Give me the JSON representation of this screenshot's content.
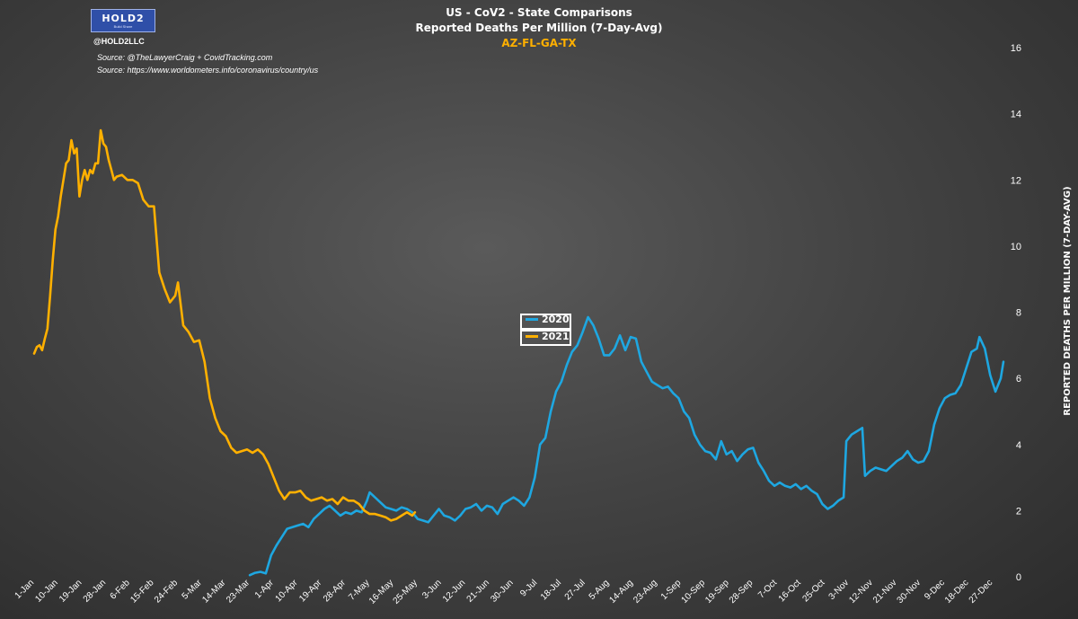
{
  "header": {
    "logo_text": "HOLD2",
    "logo_tagline": "Build Share",
    "handle": "@HOLD2LLC",
    "sources": [
      "Source: @TheLawyerCraig + CovidTracking.com",
      "Source: https://www.worldometers.info/coronavirus/country/us"
    ]
  },
  "chart_data": {
    "type": "line",
    "title": "US - CoV2 - State Comparisons",
    "title_line2": "Reported Deaths Per Million (7-Day-Avg)",
    "subtitle": "AZ-FL-GA-TX",
    "xlabel": "",
    "ylabel": "REPORTED DEATHS PER MILLION (7-DAY-AVG)",
    "ylim": [
      0,
      16
    ],
    "y_ticks": [
      0,
      2,
      4,
      6,
      8,
      10,
      12,
      14,
      16
    ],
    "y_axis_side": "right",
    "grid": false,
    "legend_position": "center",
    "x_domain_days": [
      1,
      365
    ],
    "x_ticks": [
      {
        "day": 1,
        "label": "1-Jan"
      },
      {
        "day": 10,
        "label": "10-Jan"
      },
      {
        "day": 19,
        "label": "19-Jan"
      },
      {
        "day": 28,
        "label": "28-Jan"
      },
      {
        "day": 37,
        "label": "6-Feb"
      },
      {
        "day": 46,
        "label": "15-Feb"
      },
      {
        "day": 55,
        "label": "24-Feb"
      },
      {
        "day": 64,
        "label": "5-Mar"
      },
      {
        "day": 73,
        "label": "14-Mar"
      },
      {
        "day": 82,
        "label": "23-Mar"
      },
      {
        "day": 91,
        "label": "1-Apr"
      },
      {
        "day": 100,
        "label": "10-Apr"
      },
      {
        "day": 109,
        "label": "19-Apr"
      },
      {
        "day": 118,
        "label": "28-Apr"
      },
      {
        "day": 127,
        "label": "7-May"
      },
      {
        "day": 136,
        "label": "16-May"
      },
      {
        "day": 145,
        "label": "25-May"
      },
      {
        "day": 154,
        "label": "3-Jun"
      },
      {
        "day": 163,
        "label": "12-Jun"
      },
      {
        "day": 172,
        "label": "21-Jun"
      },
      {
        "day": 181,
        "label": "30-Jun"
      },
      {
        "day": 190,
        "label": "9-Jul"
      },
      {
        "day": 199,
        "label": "18-Jul"
      },
      {
        "day": 208,
        "label": "27-Jul"
      },
      {
        "day": 217,
        "label": "5-Aug"
      },
      {
        "day": 226,
        "label": "14-Aug"
      },
      {
        "day": 235,
        "label": "23-Aug"
      },
      {
        "day": 244,
        "label": "1-Sep"
      },
      {
        "day": 253,
        "label": "10-Sep"
      },
      {
        "day": 262,
        "label": "19-Sep"
      },
      {
        "day": 271,
        "label": "28-Sep"
      },
      {
        "day": 280,
        "label": "7-Oct"
      },
      {
        "day": 289,
        "label": "16-Oct"
      },
      {
        "day": 298,
        "label": "25-Oct"
      },
      {
        "day": 307,
        "label": "3-Nov"
      },
      {
        "day": 316,
        "label": "12-Nov"
      },
      {
        "day": 325,
        "label": "21-Nov"
      },
      {
        "day": 334,
        "label": "30-Nov"
      },
      {
        "day": 343,
        "label": "9-Dec"
      },
      {
        "day": 352,
        "label": "18-Dec"
      },
      {
        "day": 361,
        "label": "27-Dec"
      }
    ],
    "series": [
      {
        "name": "2020",
        "color": "#1ea7e1",
        "points": [
          [
            82,
            0.05
          ],
          [
            84,
            0.12
          ],
          [
            86,
            0.15
          ],
          [
            88,
            0.1
          ],
          [
            90,
            0.65
          ],
          [
            92,
            0.95
          ],
          [
            94,
            1.2
          ],
          [
            96,
            1.45
          ],
          [
            98,
            1.5
          ],
          [
            100,
            1.55
          ],
          [
            102,
            1.6
          ],
          [
            104,
            1.5
          ],
          [
            106,
            1.75
          ],
          [
            108,
            1.9
          ],
          [
            110,
            2.05
          ],
          [
            112,
            2.15
          ],
          [
            114,
            2.0
          ],
          [
            116,
            1.85
          ],
          [
            118,
            1.95
          ],
          [
            120,
            1.9
          ],
          [
            122,
            2.0
          ],
          [
            124,
            1.95
          ],
          [
            126,
            2.3
          ],
          [
            127,
            2.55
          ],
          [
            129,
            2.4
          ],
          [
            131,
            2.25
          ],
          [
            133,
            2.1
          ],
          [
            135,
            2.05
          ],
          [
            137,
            2.0
          ],
          [
            139,
            2.1
          ],
          [
            141,
            2.05
          ],
          [
            143,
            1.95
          ],
          [
            145,
            1.75
          ],
          [
            147,
            1.7
          ],
          [
            149,
            1.65
          ],
          [
            151,
            1.85
          ],
          [
            153,
            2.05
          ],
          [
            155,
            1.85
          ],
          [
            157,
            1.8
          ],
          [
            159,
            1.7
          ],
          [
            161,
            1.85
          ],
          [
            163,
            2.05
          ],
          [
            165,
            2.1
          ],
          [
            167,
            2.2
          ],
          [
            169,
            2.0
          ],
          [
            171,
            2.15
          ],
          [
            173,
            2.1
          ],
          [
            175,
            1.9
          ],
          [
            177,
            2.2
          ],
          [
            179,
            2.3
          ],
          [
            181,
            2.4
          ],
          [
            183,
            2.3
          ],
          [
            185,
            2.15
          ],
          [
            187,
            2.4
          ],
          [
            189,
            3.0
          ],
          [
            191,
            4.0
          ],
          [
            193,
            4.2
          ],
          [
            195,
            5.0
          ],
          [
            197,
            5.6
          ],
          [
            199,
            5.9
          ],
          [
            201,
            6.4
          ],
          [
            203,
            6.8
          ],
          [
            205,
            7.0
          ],
          [
            207,
            7.4
          ],
          [
            209,
            7.85
          ],
          [
            211,
            7.6
          ],
          [
            213,
            7.2
          ],
          [
            215,
            6.7
          ],
          [
            217,
            6.7
          ],
          [
            219,
            6.9
          ],
          [
            221,
            7.3
          ],
          [
            223,
            6.85
          ],
          [
            225,
            7.25
          ],
          [
            227,
            7.2
          ],
          [
            229,
            6.5
          ],
          [
            231,
            6.2
          ],
          [
            233,
            5.9
          ],
          [
            235,
            5.8
          ],
          [
            237,
            5.7
          ],
          [
            239,
            5.75
          ],
          [
            241,
            5.55
          ],
          [
            243,
            5.4
          ],
          [
            245,
            5.0
          ],
          [
            247,
            4.8
          ],
          [
            249,
            4.3
          ],
          [
            251,
            4.0
          ],
          [
            253,
            3.8
          ],
          [
            255,
            3.75
          ],
          [
            257,
            3.55
          ],
          [
            259,
            4.1
          ],
          [
            261,
            3.7
          ],
          [
            263,
            3.8
          ],
          [
            265,
            3.5
          ],
          [
            267,
            3.7
          ],
          [
            269,
            3.85
          ],
          [
            271,
            3.9
          ],
          [
            273,
            3.45
          ],
          [
            275,
            3.2
          ],
          [
            277,
            2.9
          ],
          [
            279,
            2.75
          ],
          [
            281,
            2.85
          ],
          [
            283,
            2.75
          ],
          [
            285,
            2.7
          ],
          [
            287,
            2.8
          ],
          [
            289,
            2.65
          ],
          [
            291,
            2.75
          ],
          [
            293,
            2.6
          ],
          [
            295,
            2.5
          ],
          [
            297,
            2.2
          ],
          [
            299,
            2.05
          ],
          [
            301,
            2.15
          ],
          [
            303,
            2.3
          ],
          [
            305,
            2.4
          ],
          [
            306,
            4.1
          ],
          [
            308,
            4.3
          ],
          [
            310,
            4.4
          ],
          [
            312,
            4.5
          ],
          [
            313,
            3.05
          ],
          [
            315,
            3.2
          ],
          [
            317,
            3.3
          ],
          [
            319,
            3.25
          ],
          [
            321,
            3.2
          ],
          [
            323,
            3.35
          ],
          [
            325,
            3.5
          ],
          [
            327,
            3.6
          ],
          [
            329,
            3.8
          ],
          [
            331,
            3.55
          ],
          [
            333,
            3.45
          ],
          [
            335,
            3.5
          ],
          [
            337,
            3.8
          ],
          [
            339,
            4.6
          ],
          [
            341,
            5.1
          ],
          [
            343,
            5.4
          ],
          [
            345,
            5.5
          ],
          [
            347,
            5.55
          ],
          [
            349,
            5.8
          ],
          [
            351,
            6.3
          ],
          [
            353,
            6.8
          ],
          [
            355,
            6.9
          ],
          [
            356,
            7.25
          ],
          [
            358,
            6.9
          ],
          [
            360,
            6.1
          ],
          [
            362,
            5.6
          ],
          [
            364,
            6.0
          ],
          [
            365,
            6.5
          ]
        ]
      },
      {
        "name": "2021",
        "color": "#ffb000",
        "points": [
          [
            1,
            6.75
          ],
          [
            2,
            6.95
          ],
          [
            3,
            7.0
          ],
          [
            4,
            6.85
          ],
          [
            5,
            7.2
          ],
          [
            6,
            7.5
          ],
          [
            7,
            8.5
          ],
          [
            8,
            9.6
          ],
          [
            9,
            10.5
          ],
          [
            10,
            10.9
          ],
          [
            11,
            11.5
          ],
          [
            12,
            12.0
          ],
          [
            13,
            12.5
          ],
          [
            14,
            12.6
          ],
          [
            15,
            13.2
          ],
          [
            16,
            12.8
          ],
          [
            17,
            12.95
          ],
          [
            18,
            11.5
          ],
          [
            19,
            12.0
          ],
          [
            20,
            12.3
          ],
          [
            21,
            12.0
          ],
          [
            22,
            12.3
          ],
          [
            23,
            12.2
          ],
          [
            24,
            12.5
          ],
          [
            25,
            12.5
          ],
          [
            26,
            13.5
          ],
          [
            27,
            13.1
          ],
          [
            28,
            13.0
          ],
          [
            29,
            12.6
          ],
          [
            30,
            12.3
          ],
          [
            31,
            12.0
          ],
          [
            32,
            12.1
          ],
          [
            34,
            12.15
          ],
          [
            36,
            12.0
          ],
          [
            38,
            12.0
          ],
          [
            40,
            11.9
          ],
          [
            42,
            11.4
          ],
          [
            44,
            11.2
          ],
          [
            46,
            11.2
          ],
          [
            48,
            9.2
          ],
          [
            50,
            8.7
          ],
          [
            52,
            8.3
          ],
          [
            54,
            8.5
          ],
          [
            55,
            8.9
          ],
          [
            57,
            7.6
          ],
          [
            59,
            7.4
          ],
          [
            61,
            7.1
          ],
          [
            63,
            7.15
          ],
          [
            65,
            6.5
          ],
          [
            67,
            5.4
          ],
          [
            69,
            4.8
          ],
          [
            71,
            4.4
          ],
          [
            73,
            4.25
          ],
          [
            75,
            3.9
          ],
          [
            77,
            3.75
          ],
          [
            79,
            3.8
          ],
          [
            81,
            3.85
          ],
          [
            83,
            3.75
          ],
          [
            85,
            3.85
          ],
          [
            87,
            3.7
          ],
          [
            89,
            3.4
          ],
          [
            91,
            3.0
          ],
          [
            93,
            2.6
          ],
          [
            95,
            2.35
          ],
          [
            97,
            2.55
          ],
          [
            99,
            2.55
          ],
          [
            101,
            2.6
          ],
          [
            103,
            2.4
          ],
          [
            105,
            2.3
          ],
          [
            107,
            2.35
          ],
          [
            109,
            2.4
          ],
          [
            111,
            2.3
          ],
          [
            113,
            2.35
          ],
          [
            115,
            2.2
          ],
          [
            117,
            2.4
          ],
          [
            119,
            2.3
          ],
          [
            121,
            2.3
          ],
          [
            123,
            2.2
          ],
          [
            125,
            2.0
          ],
          [
            127,
            1.9
          ],
          [
            129,
            1.9
          ],
          [
            131,
            1.85
          ],
          [
            133,
            1.8
          ],
          [
            135,
            1.7
          ],
          [
            137,
            1.75
          ],
          [
            139,
            1.85
          ],
          [
            141,
            1.95
          ],
          [
            143,
            1.85
          ],
          [
            144,
            1.95
          ]
        ]
      }
    ]
  }
}
